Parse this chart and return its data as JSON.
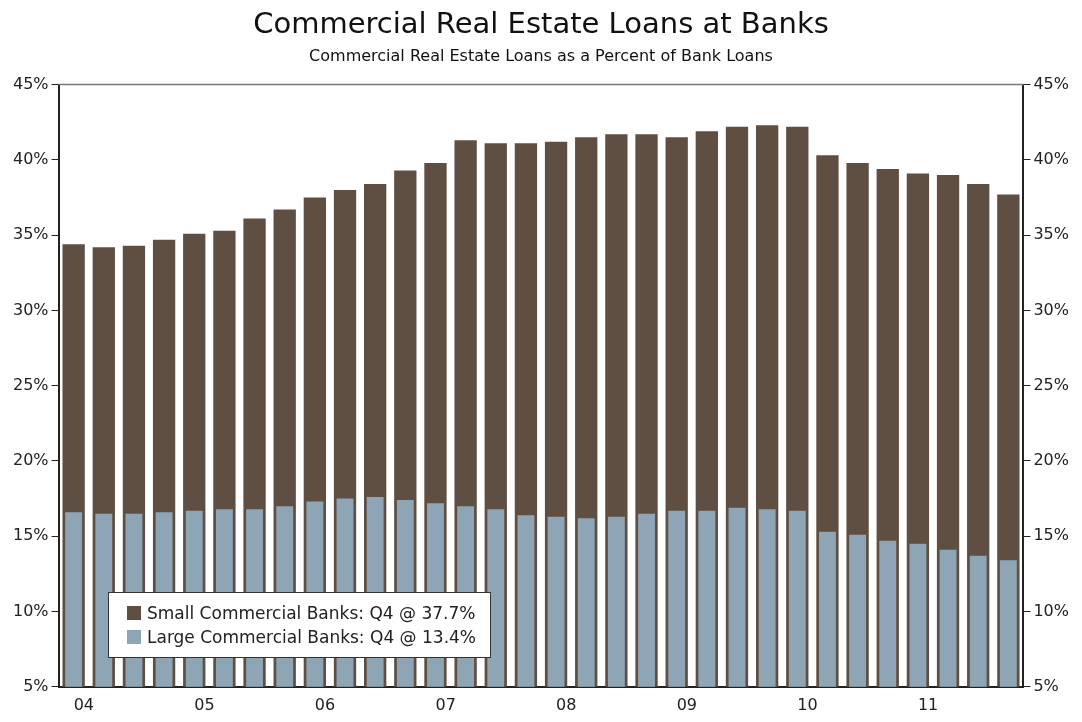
{
  "chart_data": {
    "type": "bar",
    "title": "Commercial Real Estate Loans at Banks",
    "subtitle": "Commercial Real Estate Loans as a Percent of Bank Loans",
    "categories": [
      "04",
      null,
      null,
      null,
      "05",
      null,
      null,
      null,
      "06",
      null,
      null,
      null,
      "07",
      null,
      null,
      null,
      "08",
      null,
      null,
      null,
      "09",
      null,
      null,
      null,
      "10",
      null,
      null,
      null,
      "11",
      null,
      null,
      null
    ],
    "series": [
      {
        "name": "Small Commercial Banks: Q4 @ 37.7%",
        "color": "#5f4f42",
        "values": [
          34.4,
          34.2,
          34.3,
          34.7,
          35.1,
          35.3,
          36.1,
          36.7,
          37.5,
          38.0,
          38.4,
          39.3,
          39.8,
          41.3,
          41.1,
          41.1,
          41.2,
          41.5,
          41.7,
          41.7,
          41.5,
          41.9,
          42.2,
          42.3,
          42.2,
          40.3,
          39.8,
          39.4,
          39.1,
          39.0,
          38.4,
          37.7
        ]
      },
      {
        "name": "Large Commercial Banks: Q4 @ 13.4%",
        "color": "#8ea5b5",
        "values": [
          16.6,
          16.5,
          16.5,
          16.6,
          16.7,
          16.8,
          16.8,
          17.0,
          17.3,
          17.5,
          17.6,
          17.4,
          17.2,
          17.0,
          16.8,
          16.4,
          16.3,
          16.2,
          16.3,
          16.5,
          16.7,
          16.7,
          16.9,
          16.8,
          16.7,
          15.3,
          15.1,
          14.7,
          14.5,
          14.1,
          13.7,
          13.4
        ]
      }
    ],
    "ylim": [
      5,
      45
    ],
    "yticks": [
      {
        "value": 5,
        "label": "5%"
      },
      {
        "value": 10,
        "label": "10%"
      },
      {
        "value": 15,
        "label": "15%"
      },
      {
        "value": 20,
        "label": "20%"
      },
      {
        "value": 25,
        "label": "25%"
      },
      {
        "value": 30,
        "label": "30%"
      },
      {
        "value": 35,
        "label": "35%"
      },
      {
        "value": 40,
        "label": "40%"
      },
      {
        "value": 45,
        "label": "45%"
      }
    ],
    "y2lim": [
      5,
      45
    ],
    "y2ticks": [
      {
        "value": 5,
        "label": "5%"
      },
      {
        "value": 10,
        "label": "10%"
      },
      {
        "value": 15,
        "label": "15%"
      },
      {
        "value": 20,
        "label": "20%"
      },
      {
        "value": 25,
        "label": "25%"
      },
      {
        "value": 30,
        "label": "30%"
      },
      {
        "value": 35,
        "label": "35%"
      },
      {
        "value": 40,
        "label": "40%"
      },
      {
        "value": 45,
        "label": "45%"
      }
    ],
    "grid": false,
    "legend": "bottom left"
  }
}
